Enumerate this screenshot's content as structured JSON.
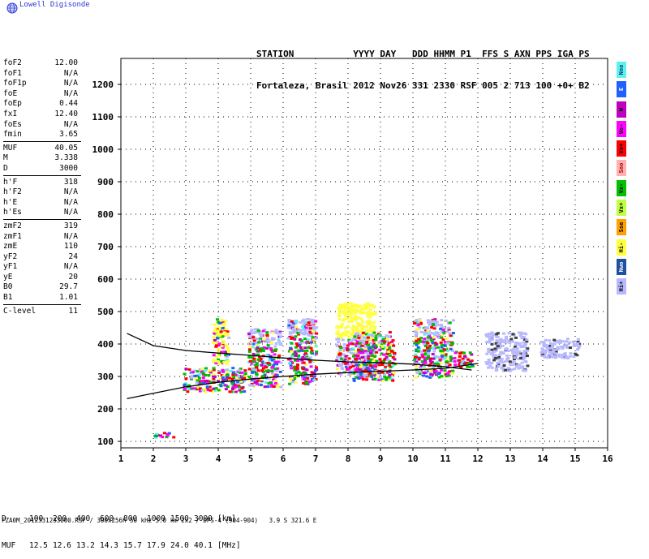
{
  "app": {
    "logo_text": "Lowell Digisonde"
  },
  "header": {
    "line1": "STATION           YYYY DAY   DDD HHMM P1  FFS S AXN PPS IGA PS",
    "line2": "Fortaleza, Brasil 2012 Nov26 331 2330 RSF 005 2 713 100 +0+ B2"
  },
  "params": [
    {
      "group": 1,
      "label": "foF2",
      "value": "12.00"
    },
    {
      "group": 1,
      "label": "foF1",
      "value": "N/A"
    },
    {
      "group": 1,
      "label": "foF1p",
      "value": "N/A"
    },
    {
      "group": 1,
      "label": "foE",
      "value": "N/A"
    },
    {
      "group": 1,
      "label": "foEp",
      "value": "0.44"
    },
    {
      "group": 1,
      "label": "fxI",
      "value": "12.40"
    },
    {
      "group": 1,
      "label": "foEs",
      "value": "N/A"
    },
    {
      "group": 1,
      "label": "fmin",
      "value": "3.65"
    },
    {
      "group": 2,
      "label": "MUF",
      "value": "40.05"
    },
    {
      "group": 2,
      "label": "M",
      "value": "3.338"
    },
    {
      "group": 2,
      "label": "D",
      "value": "3000"
    },
    {
      "group": 3,
      "label": "h'F",
      "value": "318"
    },
    {
      "group": 3,
      "label": "h'F2",
      "value": "N/A"
    },
    {
      "group": 3,
      "label": "h'E",
      "value": "N/A"
    },
    {
      "group": 3,
      "label": "h'Es",
      "value": "N/A"
    },
    {
      "group": 4,
      "label": "zmF2",
      "value": "319"
    },
    {
      "group": 4,
      "label": "zmF1",
      "value": "N/A"
    },
    {
      "group": 4,
      "label": "zmE",
      "value": "110"
    },
    {
      "group": 4,
      "label": "yF2",
      "value": "24"
    },
    {
      "group": 4,
      "label": "yF1",
      "value": "N/A"
    },
    {
      "group": 4,
      "label": "yE",
      "value": "20"
    },
    {
      "group": 4,
      "label": "B0",
      "value": "29.7"
    },
    {
      "group": 4,
      "label": "B1",
      "value": "1.01"
    },
    {
      "group": 5,
      "label": "C-level",
      "value": "11"
    }
  ],
  "legend": [
    {
      "label": "Nno",
      "color": "#5ef0f0",
      "text_color": "#003a6a"
    },
    {
      "label": "E",
      "color": "#2060ff",
      "text_color": "#ffffff"
    },
    {
      "label": "W",
      "color": "#c000c0",
      "text_color": "#000000"
    },
    {
      "label": "Vo-",
      "color": "#ff00ff",
      "text_color": "#000000"
    },
    {
      "label": "Vo+",
      "color": "#ff0000",
      "text_color": "#000000"
    },
    {
      "label": "Sno",
      "color": "#ffb0b0",
      "text_color": "#b00000"
    },
    {
      "label": "Vx-",
      "color": "#00c000",
      "text_color": "#000000"
    },
    {
      "label": "Vx+",
      "color": "#c0ff40",
      "text_color": "#000000"
    },
    {
      "label": "Sse",
      "color": "#ffa000",
      "text_color": "#000000"
    },
    {
      "label": "Hi-",
      "color": "#ffff40",
      "text_color": "#000000"
    },
    {
      "label": "Nwo",
      "color": "#2050a0",
      "text_color": "#ffffff"
    },
    {
      "label": "Hi+",
      "color": "#b8b8ff",
      "text_color": "#000000"
    }
  ],
  "footer": {
    "d_label": "D",
    "d_values": [
      "100",
      "200",
      "400",
      "600",
      "800",
      "1000",
      "1500",
      "3000"
    ],
    "d_unit": "[km]",
    "muf_label": "MUF",
    "muf_values": [
      "12.5",
      "12.6",
      "13.2",
      "14.3",
      "15.7",
      "17.9",
      "24.0",
      "40.1"
    ],
    "muf_unit": "[MHz]",
    "file_info": "FZA0M_2012331233000.RSF / 300x256h 50 kHz 5.0 km 2x2 / DPS-4 (904-904)   3.9 S 321.6 E"
  },
  "chart_data": {
    "type": "scatter",
    "title": "",
    "xlabel": "",
    "ylabel": "",
    "xlim": [
      1,
      16
    ],
    "ylim": [
      80,
      1280
    ],
    "x_ticks": [
      "1",
      "2",
      "3",
      "4",
      "5",
      "6",
      "7",
      "8",
      "9",
      "10",
      "11",
      "12",
      "13",
      "14",
      "15",
      "16"
    ],
    "y_ticks": [
      "100",
      "200",
      "300",
      "400",
      "500",
      "600",
      "700",
      "800",
      "900",
      "1000",
      "1100",
      "1200"
    ],
    "grid": true,
    "legend_position": "right",
    "bands": [
      {
        "x0": 2.9,
        "x1": 4.8,
        "y0": 255,
        "y1": 330,
        "mode": "o"
      },
      {
        "x0": 3.8,
        "x1": 4.3,
        "y0": 340,
        "y1": 480,
        "mode": "mix"
      },
      {
        "x0": 4.9,
        "x1": 5.9,
        "y0": 270,
        "y1": 450,
        "mode": "o"
      },
      {
        "x0": 6.1,
        "x1": 7.0,
        "y0": 280,
        "y1": 480,
        "mode": "o"
      },
      {
        "x0": 7.6,
        "x1": 8.8,
        "y0": 300,
        "y1": 530,
        "mode": "hi"
      },
      {
        "x0": 8.1,
        "x1": 9.4,
        "y0": 290,
        "y1": 440,
        "mode": "o"
      },
      {
        "x0": 10.0,
        "x1": 11.2,
        "y0": 300,
        "y1": 480,
        "mode": "o"
      },
      {
        "x0": 11.2,
        "x1": 11.8,
        "y0": 330,
        "y1": 380,
        "mode": "o"
      },
      {
        "x0": 12.2,
        "x1": 13.5,
        "y0": 320,
        "y1": 440,
        "mode": "x"
      },
      {
        "x0": 13.9,
        "x1": 15.1,
        "y0": 360,
        "y1": 420,
        "mode": "x"
      },
      {
        "x0": 1.9,
        "x1": 2.6,
        "y0": 115,
        "y1": 130,
        "mode": "o"
      }
    ],
    "series": [
      {
        "x": [
          1.2,
          2.0,
          3.0,
          4.0,
          5.0,
          6.0,
          7.0,
          8.0,
          9.0,
          10.0,
          11.0,
          11.8
        ],
        "values": [
          432,
          395,
          380,
          372,
          365,
          357,
          350,
          345,
          342,
          338,
          330,
          320
        ]
      },
      {
        "x": [
          1.2,
          2.0,
          3.0,
          4.0,
          5.0,
          6.0,
          7.0,
          8.0,
          9.0,
          10.0,
          11.0,
          12.0
        ],
        "values": [
          232,
          248,
          268,
          282,
          292,
          300,
          307,
          312,
          316,
          320,
          325,
          340
        ]
      }
    ]
  }
}
